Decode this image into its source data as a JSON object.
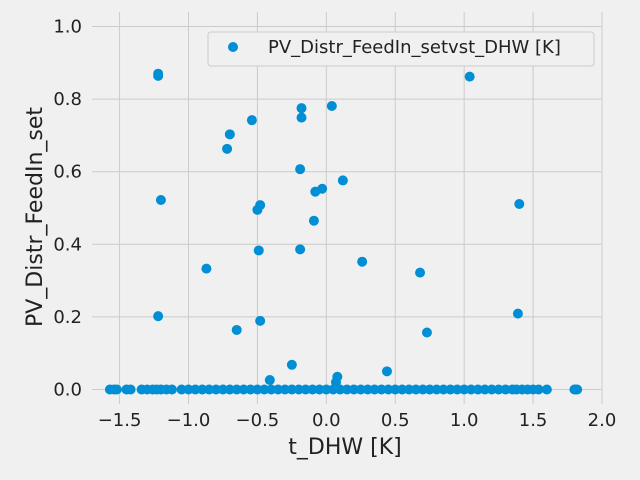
{
  "chart_data": {
    "type": "scatter",
    "title": "",
    "xlabel": "t_DHW [K]",
    "ylabel": "PV_Distr_FeedIn_set",
    "xlim": [
      -1.7,
      2.0
    ],
    "ylim": [
      -0.04,
      1.04
    ],
    "x_ticks": [
      -1.5,
      -1.0,
      -0.5,
      0.0,
      0.5,
      1.0,
      1.5,
      2.0
    ],
    "x_tick_labels": [
      "−1.5",
      "−1.0",
      "−0.5",
      "0.0",
      "0.5",
      "1.0",
      "1.5",
      "2.0"
    ],
    "y_ticks": [
      0.0,
      0.2,
      0.4,
      0.6,
      0.8,
      1.0
    ],
    "y_tick_labels": [
      "0.0",
      "0.2",
      "0.4",
      "0.6",
      "0.8",
      "1.0"
    ],
    "grid": true,
    "legend_position": "top-right",
    "colors": {
      "marker": "#008fd5",
      "background": "#f0f0f0",
      "grid": "#cbcbcb",
      "text": "#222222"
    },
    "series": [
      {
        "name": "PV_Distr_FeedIn_setvst_DHW [K]",
        "points": [
          [
            -1.22,
            0.87
          ],
          [
            -1.22,
            0.864
          ],
          [
            -1.2,
            0.522
          ],
          [
            -1.22,
            0.202
          ],
          [
            -0.87,
            0.333
          ],
          [
            -0.72,
            0.663
          ],
          [
            -0.7,
            0.703
          ],
          [
            -0.65,
            0.164
          ],
          [
            -0.54,
            0.742
          ],
          [
            -0.5,
            0.495
          ],
          [
            -0.48,
            0.508
          ],
          [
            -0.49,
            0.383
          ],
          [
            -0.48,
            0.189
          ],
          [
            -0.41,
            0.026
          ],
          [
            -0.25,
            0.068
          ],
          [
            -0.18,
            0.775
          ],
          [
            -0.18,
            0.749
          ],
          [
            -0.19,
            0.607
          ],
          [
            -0.19,
            0.386
          ],
          [
            -0.08,
            0.545
          ],
          [
            -0.03,
            0.553
          ],
          [
            -0.09,
            0.465
          ],
          [
            0.04,
            0.781
          ],
          [
            0.12,
            0.576
          ],
          [
            0.26,
            0.352
          ],
          [
            0.08,
            0.035
          ],
          [
            0.07,
            0.02
          ],
          [
            0.44,
            0.05
          ],
          [
            0.68,
            0.322
          ],
          [
            0.73,
            0.157
          ],
          [
            0.7,
            0.972
          ],
          [
            0.9,
            0.97
          ],
          [
            1.04,
            0.862
          ],
          [
            1.4,
            0.511
          ],
          [
            1.39,
            0.209
          ],
          [
            -1.57,
            0.0
          ],
          [
            -1.54,
            0.0
          ],
          [
            -1.52,
            0.0
          ],
          [
            -1.45,
            0.0
          ],
          [
            -1.42,
            0.0
          ],
          [
            -1.34,
            0.0
          ],
          [
            -1.3,
            0.0
          ],
          [
            -1.26,
            0.0
          ],
          [
            -1.23,
            0.0
          ],
          [
            -1.2,
            0.0
          ],
          [
            -1.16,
            0.0
          ],
          [
            -1.12,
            0.0
          ],
          [
            -1.05,
            0.0
          ],
          [
            -1.0,
            0.0
          ],
          [
            -0.95,
            0.0
          ],
          [
            -0.9,
            0.0
          ],
          [
            -0.85,
            0.0
          ],
          [
            -0.8,
            0.0
          ],
          [
            -0.75,
            0.0
          ],
          [
            -0.7,
            0.0
          ],
          [
            -0.65,
            0.0
          ],
          [
            -0.6,
            0.0
          ],
          [
            -0.55,
            0.0
          ],
          [
            -0.5,
            0.0
          ],
          [
            -0.45,
            0.0
          ],
          [
            -0.4,
            0.0
          ],
          [
            -0.35,
            0.0
          ],
          [
            -0.3,
            0.0
          ],
          [
            -0.25,
            0.0
          ],
          [
            -0.2,
            0.0
          ],
          [
            -0.15,
            0.0
          ],
          [
            -0.1,
            0.0
          ],
          [
            -0.05,
            0.0
          ],
          [
            0.0,
            0.0
          ],
          [
            0.05,
            0.0
          ],
          [
            0.1,
            0.0
          ],
          [
            0.15,
            0.0
          ],
          [
            0.2,
            0.0
          ],
          [
            0.25,
            0.0
          ],
          [
            0.3,
            0.0
          ],
          [
            0.35,
            0.0
          ],
          [
            0.4,
            0.0
          ],
          [
            0.45,
            0.0
          ],
          [
            0.5,
            0.0
          ],
          [
            0.55,
            0.0
          ],
          [
            0.6,
            0.0
          ],
          [
            0.65,
            0.0
          ],
          [
            0.7,
            0.0
          ],
          [
            0.75,
            0.0
          ],
          [
            0.8,
            0.0
          ],
          [
            0.85,
            0.0
          ],
          [
            0.9,
            0.0
          ],
          [
            0.95,
            0.0
          ],
          [
            1.0,
            0.0
          ],
          [
            1.05,
            0.0
          ],
          [
            1.1,
            0.0
          ],
          [
            1.15,
            0.0
          ],
          [
            1.2,
            0.0
          ],
          [
            1.25,
            0.0
          ],
          [
            1.3,
            0.0
          ],
          [
            1.35,
            0.0
          ],
          [
            1.38,
            0.0
          ],
          [
            1.42,
            0.0
          ],
          [
            1.46,
            0.0
          ],
          [
            1.5,
            0.0
          ],
          [
            1.54,
            0.0
          ],
          [
            1.6,
            0.0
          ],
          [
            1.8,
            0.0
          ],
          [
            1.81,
            0.0
          ],
          [
            1.82,
            0.0
          ]
        ]
      }
    ]
  }
}
